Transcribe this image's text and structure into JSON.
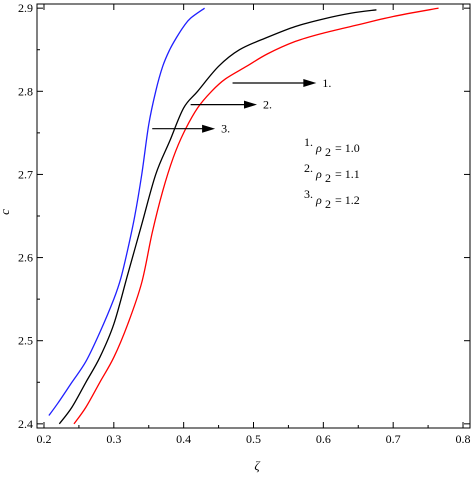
{
  "chart_data": {
    "type": "line",
    "title": "",
    "xlabel": "ζ",
    "ylabel": "c",
    "xlim": [
      0.19,
      0.81
    ],
    "ylim": [
      2.395,
      2.905
    ],
    "xticks": [
      0.2,
      0.3,
      0.4,
      0.5,
      0.6,
      0.7,
      0.8
    ],
    "xtick_labels": [
      "0.2",
      "0.3",
      "0.4",
      "0.5",
      "0.6",
      "0.7",
      "0.8"
    ],
    "yticks": [
      2.4,
      2.5,
      2.6,
      2.7,
      2.8,
      2.9
    ],
    "ytick_labels": [
      "2.4",
      "2.5",
      "2.6",
      "2.7",
      "2.8",
      "2.9"
    ],
    "grid": false,
    "series": [
      {
        "label": "1.",
        "color": "#ff0000",
        "x": [
          0.243,
          0.26,
          0.28,
          0.3,
          0.32,
          0.34,
          0.355,
          0.37,
          0.385,
          0.4,
          0.42,
          0.44,
          0.46,
          0.49,
          0.52,
          0.56,
          0.6,
          0.65,
          0.7,
          0.765
        ],
        "y": [
          2.4,
          2.42,
          2.45,
          2.48,
          2.52,
          2.57,
          2.63,
          2.68,
          2.72,
          2.75,
          2.78,
          2.8,
          2.815,
          2.83,
          2.845,
          2.86,
          2.87,
          2.88,
          2.89,
          2.9
        ]
      },
      {
        "label": "2.",
        "color": "#000000",
        "x": [
          0.222,
          0.24,
          0.26,
          0.28,
          0.3,
          0.32,
          0.34,
          0.36,
          0.38,
          0.4,
          0.42,
          0.45,
          0.48,
          0.52,
          0.56,
          0.6,
          0.64,
          0.676
        ],
        "y": [
          2.4,
          2.42,
          2.45,
          2.48,
          2.52,
          2.58,
          2.64,
          2.7,
          2.74,
          2.78,
          2.8,
          2.83,
          2.85,
          2.865,
          2.878,
          2.887,
          2.894,
          2.898
        ]
      },
      {
        "label": "3.",
        "color": "#2020ff",
        "x": [
          0.207,
          0.22,
          0.24,
          0.26,
          0.28,
          0.3,
          0.31,
          0.32,
          0.33,
          0.34,
          0.35,
          0.36,
          0.37,
          0.38,
          0.39,
          0.4,
          0.41,
          0.43
        ],
        "y": [
          2.41,
          2.425,
          2.45,
          2.475,
          2.51,
          2.55,
          2.575,
          2.61,
          2.65,
          2.7,
          2.76,
          2.8,
          2.83,
          2.85,
          2.865,
          2.878,
          2.888,
          2.9
        ]
      }
    ],
    "annotations": [
      {
        "label": "1.",
        "from": [
          0.47,
          2.81
        ],
        "to": [
          0.59,
          2.81
        ]
      },
      {
        "label": "2.",
        "from": [
          0.41,
          2.784
        ],
        "to": [
          0.505,
          2.784
        ]
      },
      {
        "label": "3.",
        "from": [
          0.355,
          2.755
        ],
        "to": [
          0.445,
          2.755
        ]
      }
    ],
    "legend": {
      "placement": "right",
      "entries": [
        {
          "num": "1.",
          "symbol": "ρ",
          "sub": "2",
          "value": "= 1.0"
        },
        {
          "num": "2.",
          "symbol": "ρ",
          "sub": "2",
          "value": "= 1.1"
        },
        {
          "num": "3.",
          "symbol": "ρ",
          "sub": "2",
          "value": "= 1.2"
        }
      ]
    }
  }
}
